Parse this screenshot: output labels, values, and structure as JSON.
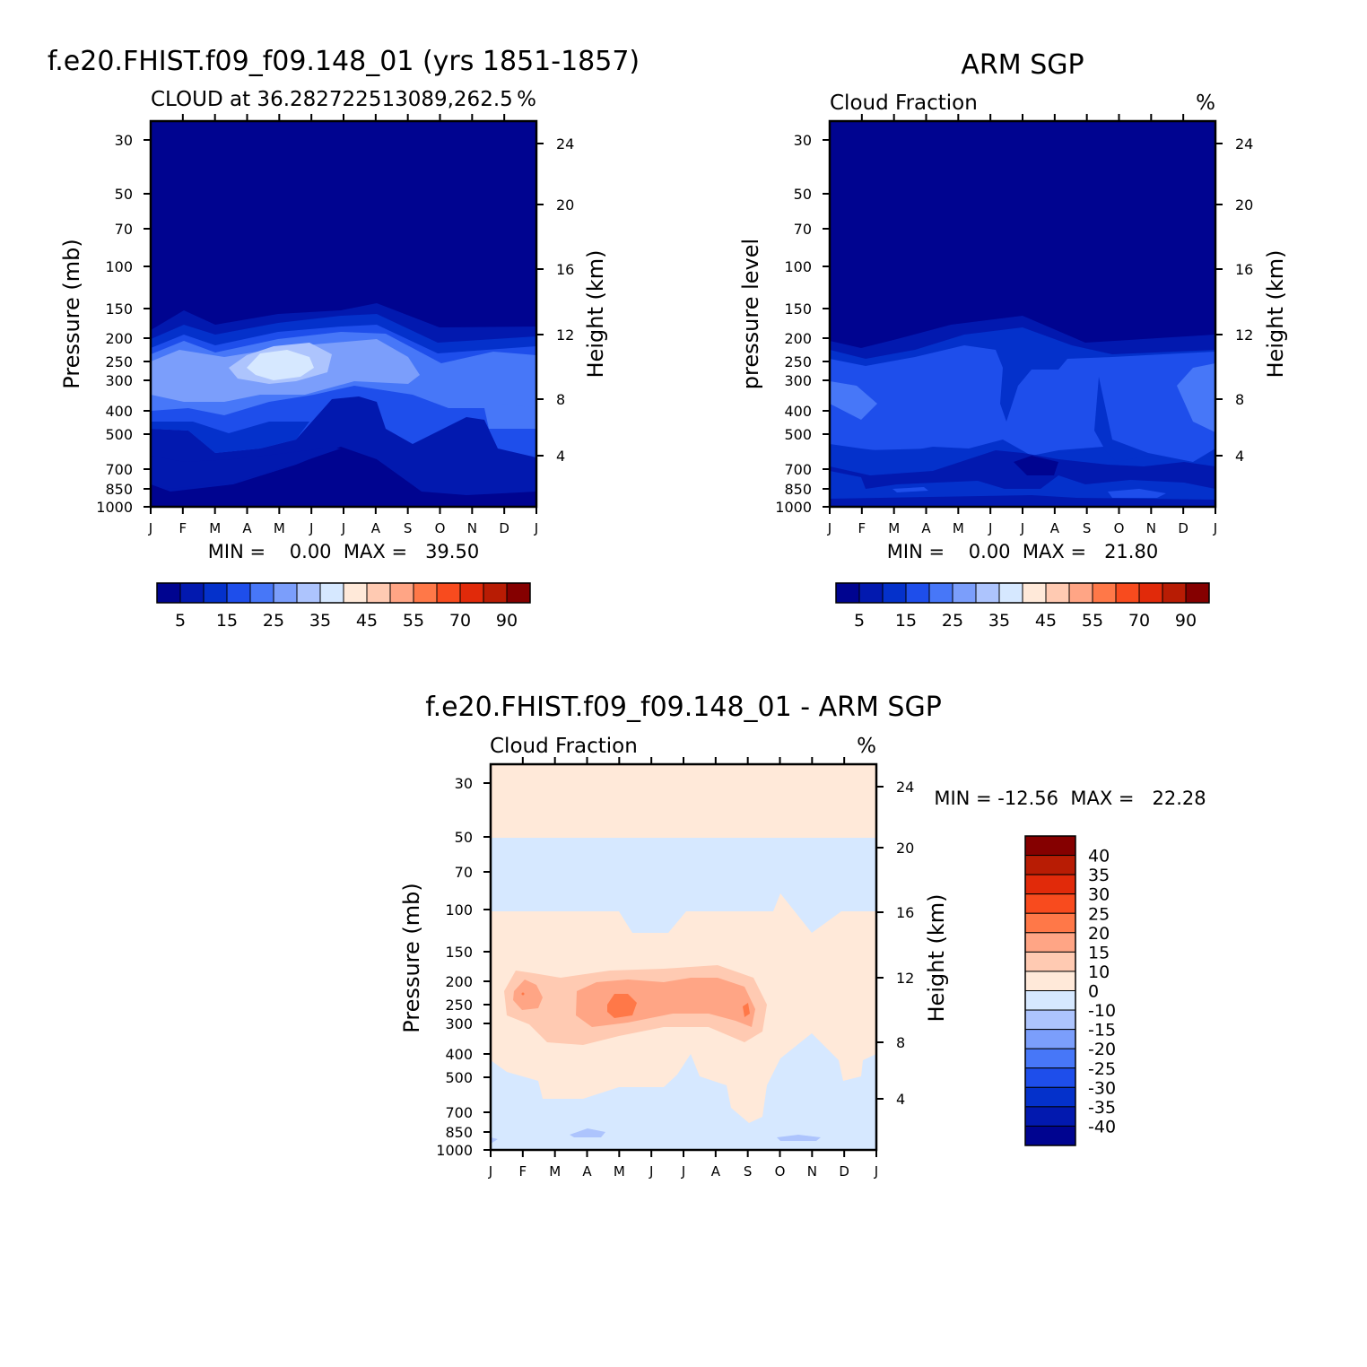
{
  "chart_data": [
    {
      "type": "heatmap",
      "title": "f.e20.FHIST.f09_f09.148_01 (yrs 1851-1857)",
      "subtitle": "CLOUD at 36.282722513089,262.5",
      "units": "%",
      "ylabel": "Pressure (mb)",
      "ylabel_right": "Height (km)",
      "x_ticks": [
        "J",
        "F",
        "M",
        "A",
        "M",
        "J",
        "J",
        "A",
        "S",
        "O",
        "N",
        "D",
        "J"
      ],
      "y_ticks": [
        "30",
        "50",
        "70",
        "100",
        "150",
        "200",
        "250",
        "300",
        "400",
        "500",
        "700",
        "850",
        "1000"
      ],
      "y_ticks_right": [
        "24",
        "20",
        "16",
        "12",
        "8",
        "4"
      ],
      "min_max_text": "MIN =    0.00  MAX =   39.50",
      "stats": {
        "min": 0.0,
        "max": 39.5
      },
      "colorbar": {
        "labels": [
          "5",
          "15",
          "25",
          "35",
          "45",
          "55",
          "70",
          "90"
        ],
        "colors": [
          "#000490",
          "#0219AF",
          "#0431CB",
          "#1E4EEB",
          "#4777F8",
          "#7B9EFB",
          "#ADC4FD",
          "#D6E8FF",
          "#FFE9D9",
          "#FFCAB2",
          "#FFA585",
          "#FF7848",
          "#F84B1E",
          "#E12A0A",
          "#B81C04",
          "#850000"
        ]
      }
    },
    {
      "type": "heatmap",
      "title": "ARM SGP",
      "subtitle": "Cloud Fraction",
      "units": "%",
      "ylabel": "pressure level",
      "ylabel_right": "Height (km)",
      "x_ticks": [
        "J",
        "F",
        "M",
        "A",
        "M",
        "J",
        "J",
        "A",
        "S",
        "O",
        "N",
        "D",
        "J"
      ],
      "y_ticks": [
        "30",
        "50",
        "70",
        "100",
        "150",
        "200",
        "250",
        "300",
        "400",
        "500",
        "700",
        "850",
        "1000"
      ],
      "y_ticks_right": [
        "24",
        "20",
        "16",
        "12",
        "8",
        "4"
      ],
      "min_max_text": "MIN =    0.00  MAX =   21.80",
      "stats": {
        "min": 0.0,
        "max": 21.8
      },
      "colorbar": {
        "labels": [
          "5",
          "15",
          "25",
          "35",
          "45",
          "55",
          "70",
          "90"
        ],
        "colors": [
          "#000490",
          "#0219AF",
          "#0431CB",
          "#1E4EEB",
          "#4777F8",
          "#7B9EFB",
          "#ADC4FD",
          "#D6E8FF",
          "#FFE9D9",
          "#FFCAB2",
          "#FFA585",
          "#FF7848",
          "#F84B1E",
          "#E12A0A",
          "#B81C04",
          "#850000"
        ]
      }
    },
    {
      "type": "heatmap",
      "title": "f.e20.FHIST.f09_f09.148_01 - ARM SGP",
      "subtitle": "Cloud Fraction",
      "units": "%",
      "ylabel": "Pressure (mb)",
      "ylabel_right": "Height (km)",
      "x_ticks": [
        "J",
        "F",
        "M",
        "A",
        "M",
        "J",
        "J",
        "A",
        "S",
        "O",
        "N",
        "D",
        "J"
      ],
      "y_ticks": [
        "30",
        "50",
        "70",
        "100",
        "150",
        "200",
        "250",
        "300",
        "400",
        "500",
        "700",
        "850",
        "1000"
      ],
      "y_ticks_right": [
        "24",
        "20",
        "16",
        "12",
        "8",
        "4"
      ],
      "min_max_text": "MIN = -12.56  MAX =   22.28",
      "stats": {
        "min": -12.56,
        "max": 22.28
      },
      "colorbar": {
        "labels": [
          "40",
          "35",
          "30",
          "25",
          "20",
          "15",
          "10",
          "0",
          "-10",
          "-15",
          "-20",
          "-25",
          "-30",
          "-35",
          "-40"
        ],
        "colors": [
          "#850000",
          "#B81C04",
          "#E12A0A",
          "#F84B1E",
          "#FF7848",
          "#FFA585",
          "#FFCAB2",
          "#FFE9D9",
          "#D6E8FF",
          "#ADC4FD",
          "#7B9EFB",
          "#4777F8",
          "#1E4EEB",
          "#0431CB",
          "#0219AF",
          "#000490"
        ]
      }
    }
  ]
}
